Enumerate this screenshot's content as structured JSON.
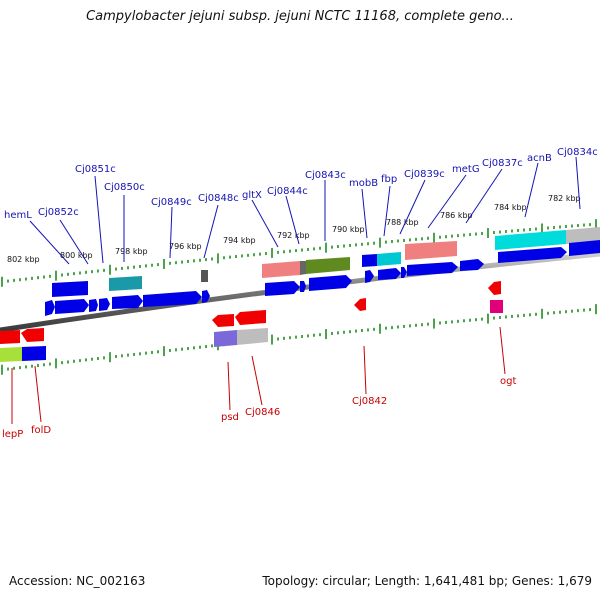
{
  "title": "Campylobacter jejuni subsp. jejuni NCTC 11168, complete geno...",
  "footer": {
    "accession": "Accession: NC_002163",
    "summary": "Topology: circular; Length: 1,641,481 bp; Genes: 1,679"
  },
  "scale_labels": [
    "802 kbp",
    "800 kbp",
    "798 kbp",
    "796 kbp",
    "794 kbp",
    "792 kbp",
    "790 kbp",
    "788 kbp",
    "786 kbp",
    "784 kbp",
    "782 kbp"
  ],
  "forward_genes": [
    "hemL",
    "Cj0852c",
    "Cj0851c",
    "Cj0850c",
    "Cj0849c",
    "Cj0848c",
    "gltX",
    "Cj0844c",
    "Cj0843c",
    "mobB",
    "fbp",
    "Cj0839c",
    "metG",
    "Cj0837c",
    "acnB",
    "Cj0834c"
  ],
  "reverse_genes": [
    "lepP",
    "folD",
    "psd",
    "Cj0846",
    "Cj0842",
    "ogt"
  ],
  "colors": {
    "forward_label": "#1414b4",
    "reverse_label": "#c80000",
    "forward_cds": "#0000e6",
    "reverse_cds": "#f00000",
    "ticks": "#1e8c1e"
  }
}
